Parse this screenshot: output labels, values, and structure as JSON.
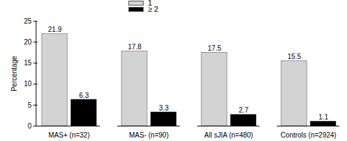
{
  "chart_data": {
    "type": "bar",
    "categories": [
      "MAS+ (n=32)",
      "MAS- (n=90)",
      "All sJIA (n=480)",
      "Controls (n=2924)"
    ],
    "series": [
      {
        "name": "1",
        "color": "#d3d3d3",
        "values": [
          21.9,
          17.8,
          17.5,
          15.5
        ]
      },
      {
        "name": "≥ 2",
        "color": "#000000",
        "values": [
          6.3,
          3.3,
          2.7,
          1.1
        ]
      }
    ],
    "y_label": "Percentage",
    "ylim": [
      0,
      25
    ],
    "yticks": [
      0,
      5,
      10,
      15,
      20,
      25
    ],
    "data_labels": true,
    "legend": "top",
    "grid": false
  }
}
